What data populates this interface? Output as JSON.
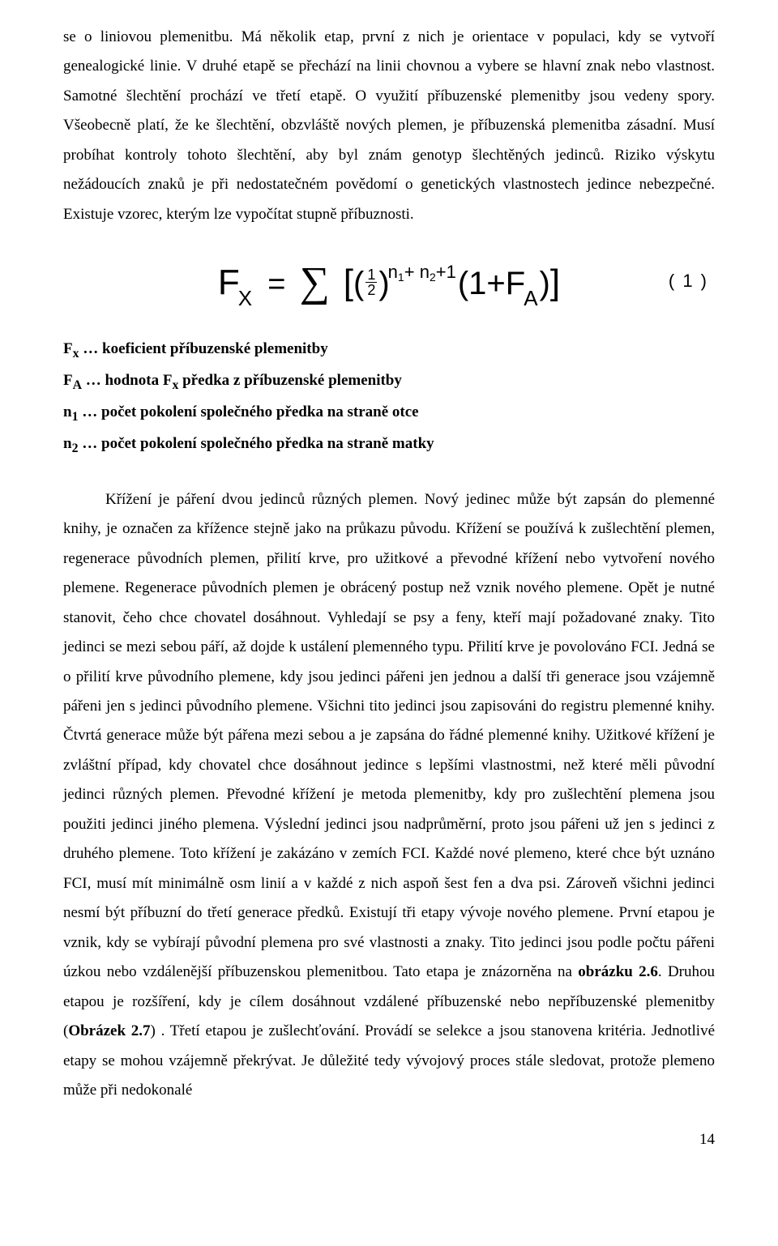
{
  "para1": "se o liniovou plemenitbu. Má několik etap, první z nich je orientace v populaci, kdy se vytvoří genealogické linie. V druhé etapě se přechází na linii chovnou a vybere se hlavní znak nebo vlastnost. Samotné šlechtění prochází ve třetí etapě. O využití příbuzenské plemenitby jsou vedeny spory. Všeobecně platí, že ke šlechtění, obzvláště nových plemen, je příbuzenská plemenitba zásadní. Musí probíhat kontroly tohoto šlechtění, aby byl znám genotyp šlechtěných jedinců. Riziko výskytu nežádoucích znaků je při nedostatečném povědomí o genetických vlastnostech jedince nebezpečné. Existuje vzorec, kterým lze vypočítat stupně příbuznosti.",
  "formula": {
    "F": "F",
    "sub_x": "X",
    "eq": "=",
    "bracket_open": "[",
    "paren_open": "(",
    "frac_num": "1",
    "frac_den": "2",
    "paren_close": ")",
    "exp_n": "n",
    "exp_1": "1",
    "exp_plus": "+",
    "exp_2": "2",
    "exp_plus1": "+1",
    "one_plus": "(1+F",
    "sub_a": "A",
    "close": ")",
    "bracket_close": "]",
    "eq_num": "( 1 )"
  },
  "defs": {
    "d1a": "F",
    "d1b": "x",
    "d1c": " … koeficient příbuzenské plemenitby",
    "d2a": "F",
    "d2b": "A",
    "d2c": " … hodnota F",
    "d2d": "x",
    "d2e": " předka z příbuzenské plemenitby",
    "d3a": "n",
    "d3b": "1",
    "d3c": " … počet pokolení společného předka na straně otce",
    "d4a": "n",
    "d4b": "2",
    "d4c": " … počet pokolení společného předka na straně matky"
  },
  "para2_pre1": "Křížení je páření dvou jedinců různých plemen. Nový jedinec může být zapsán do plemenné knihy, je označen za křížence stejně jako na průkazu původu. Křížení se používá k zušlechtění plemen, regenerace původních plemen, přilití krve, pro užitkové a převodné křížení nebo vytvoření nového plemene. Regenerace původních plemen je obrácený postup než vznik nového plemene. Opět je nutné stanovit, čeho chce chovatel dosáhnout. Vyhledají se psy a feny, kteří mají požadované znaky. Tito jedinci se mezi sebou páří, až dojde k ustálení plemenného typu. Přilití krve je povolováno FCI. Jedná se o přilití krve původního plemene, kdy jsou jedinci pářeni jen jednou a další tři generace jsou vzájemně pářeni jen s jedinci původního plemene. Všichni tito jedinci jsou zapisováni do registru plemenné knihy. Čtvrtá generace může být pářena mezi sebou a je zapsána do řádné plemenné knihy. Užitkové křížení je zvláštní případ, kdy chovatel chce dosáhnout jedince s lepšími vlastnostmi, než které měli původní jedinci různých plemen. Převodné křížení je metoda plemenitby, kdy pro zušlechtění plemena jsou použiti jedinci jiného plemena. Výslední jedinci jsou nadprůměrní, proto jsou pářeni už jen s jedinci z druhého plemene. Toto křížení je zakázáno v zemích FCI. Každé nové plemeno, které chce být uznáno FCI, musí mít minimálně osm linií a v každé z nich aspoň šest fen a dva psi. Zároveň všichni jedinci nesmí být příbuzní do třetí generace předků. Existují tři etapy vývoje nového plemene. První etapou je vznik, kdy se vybírají původní plemena pro své vlastnosti a znaky. Tito jedinci jsou podle počtu pářeni úzkou nebo vzdálenější příbuzenskou plemenitbou. Tato etapa je znázorněna na ",
  "bold1": "obrázku 2.6",
  "para2_mid": ". Druhou etapou je rozšíření, kdy je cílem dosáhnout vzdálené příbuzenské nebo nepříbuzenské plemenitby (",
  "bold2": "Obrázek 2.7",
  "para2_post": ") . Třetí etapou je zušlechťování. Provádí se selekce a jsou stanovena kritéria. Jednotlivé etapy se mohou vzájemně překrývat. Je důležité tedy vývojový proces stále sledovat, protože plemeno může při nedokonalé",
  "page_num": "14"
}
